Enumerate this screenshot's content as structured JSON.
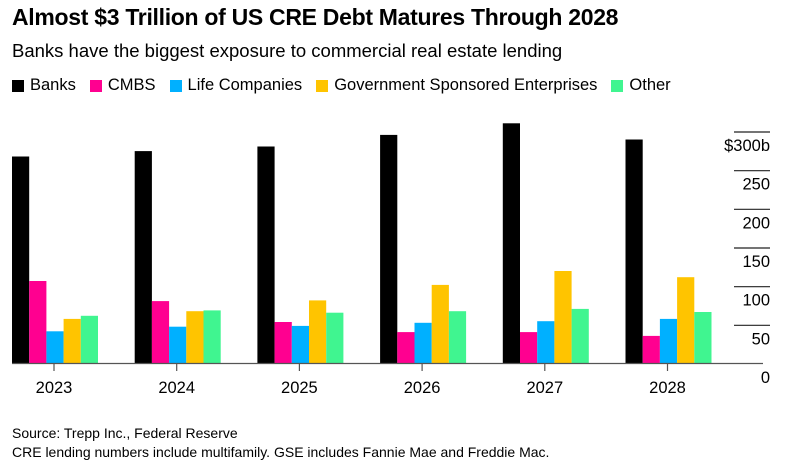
{
  "header": {
    "title": "Almost $3 Trillion of US CRE Debt Matures Through 2028",
    "subtitle": "Banks have the biggest exposure to commercial real estate lending"
  },
  "footer": {
    "source": "Source: Trepp Inc., Federal Reserve",
    "note": "CRE lending numbers include multifamily. GSE includes Fannie Mae and Freddie Mac."
  },
  "chart_data": {
    "type": "bar",
    "title": "Almost $3 Trillion of US CRE Debt Matures Through 2028",
    "subtitle": "Banks have the biggest exposure to commercial real estate lending",
    "xlabel": "",
    "ylabel": "",
    "categories": [
      "2023",
      "2024",
      "2025",
      "2026",
      "2027",
      "2028"
    ],
    "series": [
      {
        "name": "Banks",
        "color": "#000000",
        "values": [
          267,
          274,
          280,
          295,
          310,
          289
        ]
      },
      {
        "name": "CMBS",
        "color": "#ff0090",
        "values": [
          106,
          80,
          53,
          40,
          40,
          35
        ]
      },
      {
        "name": "Life Companies",
        "color": "#00b0ff",
        "values": [
          41,
          47,
          48,
          52,
          54,
          57
        ]
      },
      {
        "name": "Government Sponsored Enterprises",
        "color": "#ffc400",
        "values": [
          57,
          67,
          81,
          101,
          119,
          111
        ]
      },
      {
        "name": "Other",
        "color": "#40f590",
        "values": [
          61,
          68,
          65,
          67,
          70,
          66
        ]
      }
    ],
    "ylim": [
      0,
      300
    ],
    "yticks": [
      0,
      50,
      100,
      150,
      200,
      250,
      300
    ],
    "ytick_labels": [
      "0",
      "50",
      "100",
      "150",
      "200",
      "250",
      "$300b"
    ],
    "y_axis_side": "right",
    "legend_position": "top-left",
    "grid": false
  }
}
